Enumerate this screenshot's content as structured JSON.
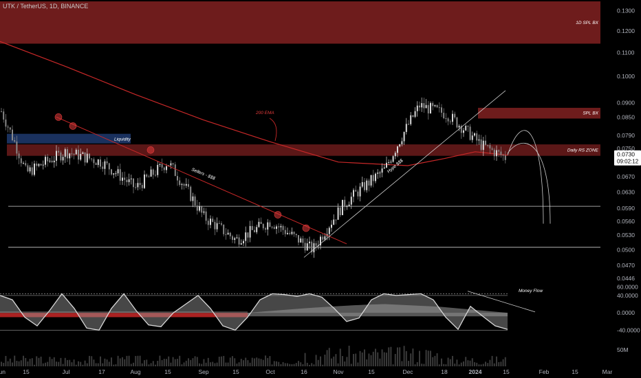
{
  "header": {
    "title": "UTK / TetherUS, 1D, BINANCE"
  },
  "colors": {
    "background": "#000000",
    "candle": "#d9d9d9",
    "ema": "#c82828",
    "zone": "#7a1f1f",
    "liquidity": "#1e3a6e",
    "accent_red": "#e03a3a",
    "price_tag": "#ffffff",
    "grey": "#787b86"
  },
  "chart_data": {
    "type": "candlestick",
    "title": "UTK / TetherUS, 1D, BINANCE",
    "y_scale": "log",
    "ylim": [
      0.0446,
      0.135
    ],
    "y_ticks": [
      "0.1300",
      "0.1200",
      "0.1100",
      "0.1000",
      "0.0900",
      "0.0850",
      "0.0790",
      "0.0750",
      "0.0710",
      "0.0670",
      "0.0630",
      "0.0590",
      "0.0560",
      "0.0530",
      "0.0500",
      "0.0470",
      "0.0446"
    ],
    "x_ticks": [
      "Jun",
      "15",
      "Jul",
      "17",
      "Aug",
      "15",
      "Sep",
      "15",
      "Oct",
      "16",
      "Nov",
      "15",
      "Dec",
      "18",
      "2024",
      "15",
      "Feb",
      "15",
      "Mar"
    ],
    "current_price": "0.0730",
    "countdown": "09:02:12",
    "price_path": [
      [
        "Jun",
        0.088
      ],
      [
        "15",
        0.068
      ],
      [
        "Jul",
        0.074
      ],
      [
        "17",
        0.071
      ],
      [
        "Aug",
        0.064
      ],
      [
        "15",
        0.071
      ],
      [
        "Sep",
        0.057
      ],
      [
        "15",
        0.052
      ],
      [
        "Oct",
        0.056
      ],
      [
        "16",
        0.05
      ],
      [
        "Nov",
        0.06
      ],
      [
        "15",
        0.069
      ],
      [
        "Dec",
        0.089
      ],
      [
        "18",
        0.086
      ],
      [
        "2024",
        0.076
      ],
      [
        "15",
        0.072
      ]
    ],
    "ema_path": [
      [
        "Jun",
        0.115
      ],
      [
        "Jul",
        0.104
      ],
      [
        "Aug",
        0.093
      ],
      [
        "Sep",
        0.084
      ],
      [
        "Oct",
        0.077
      ],
      [
        "Nov",
        0.071
      ],
      [
        "Dec",
        0.07
      ],
      [
        "18",
        0.072
      ],
      [
        "2024",
        0.074
      ],
      [
        "15",
        0.073
      ]
    ],
    "zones": [
      {
        "label": "1D SPL BX",
        "from": 0.114,
        "to": 0.135
      },
      {
        "label": "SPL BX",
        "from": 0.0845,
        "to": 0.0882
      },
      {
        "label": "Daily RS ZONE",
        "from": 0.0728,
        "to": 0.0762
      },
      {
        "label": "Liquidity",
        "from": 0.0765,
        "to": 0.0795
      }
    ],
    "horizontal_levels": [
      0.0595,
      0.0505
    ],
    "annotations": [
      "200 EMA",
      "Sellers - $$$",
      "Hype $$$",
      "Liquidity"
    ],
    "oscillator": {
      "label": "Money Flow",
      "ticks": [
        "60.0000",
        "40.0000",
        "0.0000",
        "-40.0000"
      ],
      "ylim": [
        -52,
        62
      ],
      "series": [
        40,
        30,
        -10,
        -30,
        5,
        44,
        10,
        -35,
        -40,
        10,
        44,
        5,
        -28,
        -32,
        0,
        20,
        40,
        10,
        -30,
        -40,
        -10,
        30,
        44,
        42,
        38,
        44,
        36,
        10,
        -20,
        -12,
        30,
        44,
        40,
        42,
        44,
        30,
        -10,
        -38,
        15,
        -8,
        -30,
        -38
      ]
    },
    "volume": {
      "ticks": [
        "50M"
      ]
    }
  }
}
